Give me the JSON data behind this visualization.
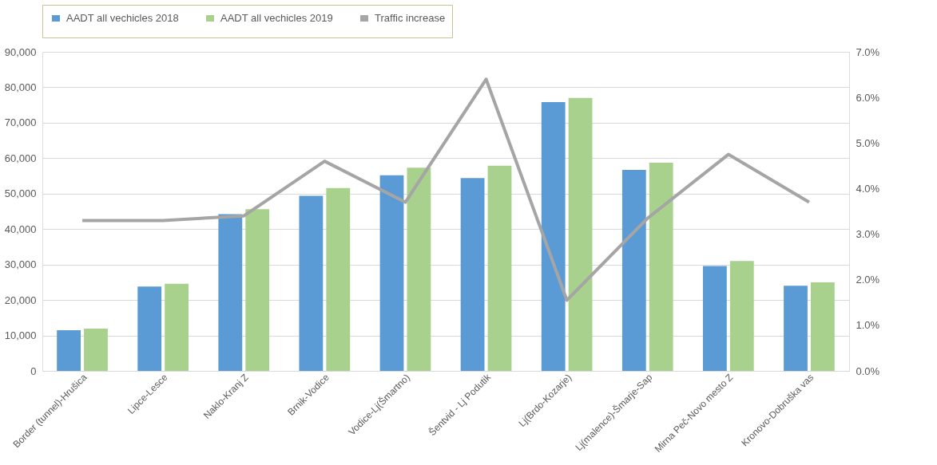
{
  "chart_data": {
    "type": "bar",
    "categories": [
      "Border (tunnel)-Hrušica",
      "Lipce-Lesce",
      "Naklo-Kranj Z",
      "Brnik-Vodice",
      "Vodice-Lj(Šmartno)",
      "Šentvid - Lj Podutik",
      "Lj(Brdo-Kozarje)",
      "Lj(malence)-Šmarje-Sap",
      "Mirna Peč-Novo mesto Z",
      "Kronovo-Dobruška vas"
    ],
    "series": [
      {
        "name": "AADT all vechicles 2018",
        "color": "#5b9bd5",
        "values": [
          11500,
          23800,
          44200,
          49400,
          55200,
          54400,
          75800,
          56700,
          29600,
          24000
        ]
      },
      {
        "name": "AADT all vechicles 2019",
        "color": "#a9d18e",
        "values": [
          11900,
          24600,
          45600,
          51600,
          57300,
          57900,
          77000,
          58700,
          31000,
          25000
        ]
      },
      {
        "name": "Traffic increase",
        "color": "#a5a5a5",
        "type": "line",
        "axis": "y2",
        "values": [
          3.3,
          3.3,
          3.4,
          4.6,
          3.7,
          6.4,
          1.55,
          3.35,
          4.75,
          3.7
        ]
      }
    ],
    "ylim": [
      0,
      90000
    ],
    "yticks": [
      {
        "value": 0,
        "label": "0"
      },
      {
        "value": 10000,
        "label": "10,000"
      },
      {
        "value": 20000,
        "label": "20,000"
      },
      {
        "value": 30000,
        "label": "30,000"
      },
      {
        "value": 40000,
        "label": "40,000"
      },
      {
        "value": 50000,
        "label": "50,000"
      },
      {
        "value": 60000,
        "label": "60,000"
      },
      {
        "value": 70000,
        "label": "70,000"
      },
      {
        "value": 80000,
        "label": "80,000"
      },
      {
        "value": 90000,
        "label": "90,000"
      }
    ],
    "y2lim": [
      0,
      7
    ],
    "y2ticks": [
      {
        "value": 0,
        "label": "0.0%"
      },
      {
        "value": 1,
        "label": "1.0%"
      },
      {
        "value": 2,
        "label": "2.0%"
      },
      {
        "value": 3,
        "label": "3.0%"
      },
      {
        "value": 4,
        "label": "4.0%"
      },
      {
        "value": 5,
        "label": "5.0%"
      },
      {
        "value": 6,
        "label": "6.0%"
      },
      {
        "value": 7,
        "label": "7.0%"
      }
    ],
    "grid": "y",
    "legend": "top",
    "marker": "none",
    "line_style": "solid"
  }
}
